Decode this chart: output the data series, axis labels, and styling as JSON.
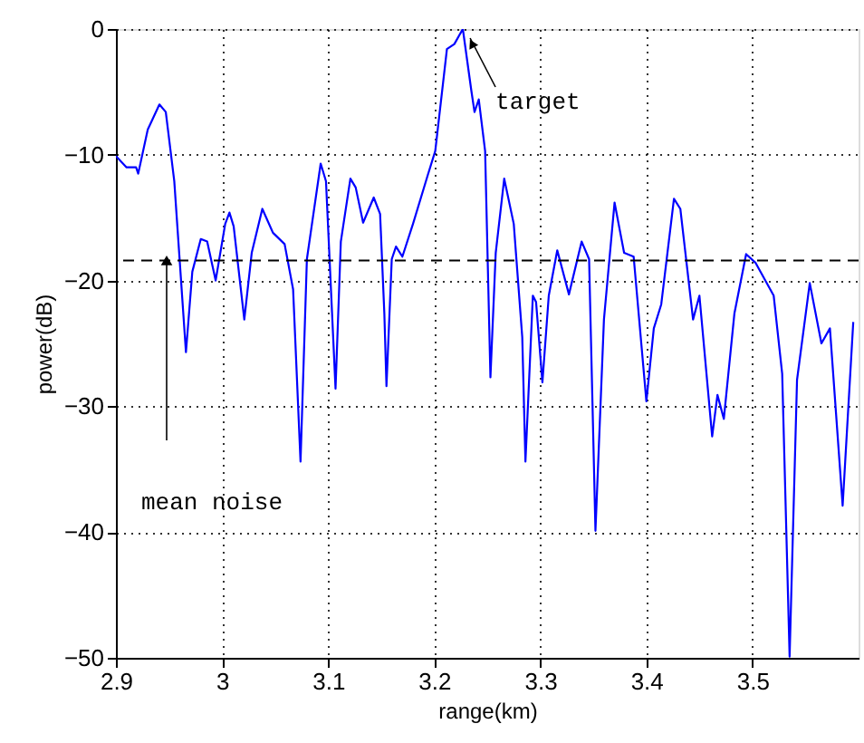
{
  "chart_data": {
    "type": "line",
    "xlabel": "range(km)",
    "ylabel": "power(dB)",
    "xlim": [
      2.9,
      3.6
    ],
    "xticks": [
      2.9,
      3,
      3.1,
      3.2,
      3.3,
      3.4,
      3.5
    ],
    "ylim": [
      -50,
      0
    ],
    "yticks": [
      -50,
      -40,
      -30,
      -20,
      -10,
      0
    ],
    "grid": true,
    "marker": "none",
    "line_style": "solid",
    "series": [
      {
        "color": "#0000ff",
        "x": [
          2.9,
          2.91,
          2.919,
          2.921,
          2.93,
          2.941,
          2.947,
          2.955,
          2.966,
          2.972,
          2.98,
          2.986,
          2.994,
          3.003,
          3.007,
          3.011,
          3.021,
          3.028,
          3.038,
          3.048,
          3.059,
          3.067,
          3.074,
          3.08,
          3.093,
          3.098,
          3.107,
          3.112,
          3.121,
          3.126,
          3.133,
          3.143,
          3.149,
          3.153,
          3.155,
          3.16,
          3.164,
          3.17,
          3.18,
          3.194,
          3.201,
          3.212,
          3.219,
          3.227,
          3.235,
          3.238,
          3.242,
          3.248,
          3.253,
          3.258,
          3.266,
          3.275,
          3.283,
          3.286,
          3.293,
          3.296,
          3.302,
          3.308,
          3.316,
          3.327,
          3.339,
          3.346,
          3.352,
          3.36,
          3.37,
          3.379,
          3.388,
          3.4,
          3.407,
          3.414,
          3.426,
          3.432,
          3.444,
          3.45,
          3.462,
          3.467,
          3.473,
          3.483,
          3.494,
          3.503,
          3.52,
          3.528,
          3.535,
          3.542,
          3.554,
          3.565,
          3.573,
          3.585,
          3.595
        ],
        "values": [
          -10.1,
          -11,
          -11,
          -11.5,
          -8,
          -6,
          -6.6,
          -12.1,
          -25.7,
          -19.3,
          -16.7,
          -16.9,
          -20,
          -15.5,
          -14.6,
          -15.7,
          -23.1,
          -17.8,
          -14.3,
          -16.2,
          -17.1,
          -20.7,
          -34.4,
          -18.3,
          -10.7,
          -12.1,
          -28.6,
          -16.9,
          -11.9,
          -12.6,
          -15.4,
          -13.4,
          -14.7,
          -22.6,
          -28.4,
          -18.3,
          -17.3,
          -18.1,
          -15.5,
          -11.6,
          -9.7,
          -1.6,
          -1.2,
          0,
          -4.9,
          -6.6,
          -5.6,
          -9.7,
          -27.7,
          -17.8,
          -11.9,
          -15.5,
          -24.5,
          -34.4,
          -21.2,
          -21.7,
          -28.1,
          -21.2,
          -17.6,
          -21.1,
          -16.9,
          -18.3,
          -39.9,
          -23.1,
          -13.8,
          -17.8,
          -18.1,
          -29.6,
          -23.8,
          -21.9,
          -13.5,
          -14.3,
          -23.1,
          -21.2,
          -32.4,
          -29.1,
          -31,
          -22.6,
          -17.9,
          -18.6,
          -21.2,
          -27.4,
          -49.9,
          -27.9,
          -20.2,
          -25,
          -23.8,
          -37.9,
          -23.3
        ]
      }
    ],
    "ref_lines": [
      {
        "axis": "y",
        "value": -18.4,
        "label": "mean noise",
        "color": "#000000",
        "line_style": "dashed"
      }
    ],
    "annotations": [
      {
        "text": "target",
        "x": 3.227,
        "y": 0
      }
    ]
  }
}
